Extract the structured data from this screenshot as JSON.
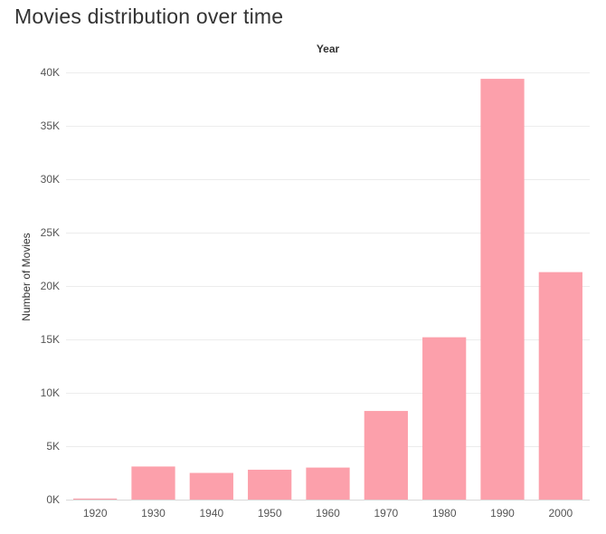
{
  "title": "Movies distribution over time",
  "chart_data": {
    "type": "bar",
    "title": "Movies distribution over time",
    "xlabel": "Year",
    "ylabel": "Number of Movies",
    "categories": [
      "1920",
      "1930",
      "1940",
      "1950",
      "1960",
      "1970",
      "1980",
      "1990",
      "2000"
    ],
    "values": [
      100,
      3100,
      2500,
      2800,
      3000,
      8300,
      15200,
      39400,
      21300
    ],
    "ylim": [
      0,
      40000
    ],
    "yticks": [
      0,
      5000,
      10000,
      15000,
      20000,
      25000,
      30000,
      35000,
      40000
    ],
    "ytick_labels": [
      "0K",
      "5K",
      "10K",
      "15K",
      "20K",
      "25K",
      "30K",
      "35K",
      "40K"
    ],
    "grid": true,
    "bar_color": "#FCA0AB"
  }
}
